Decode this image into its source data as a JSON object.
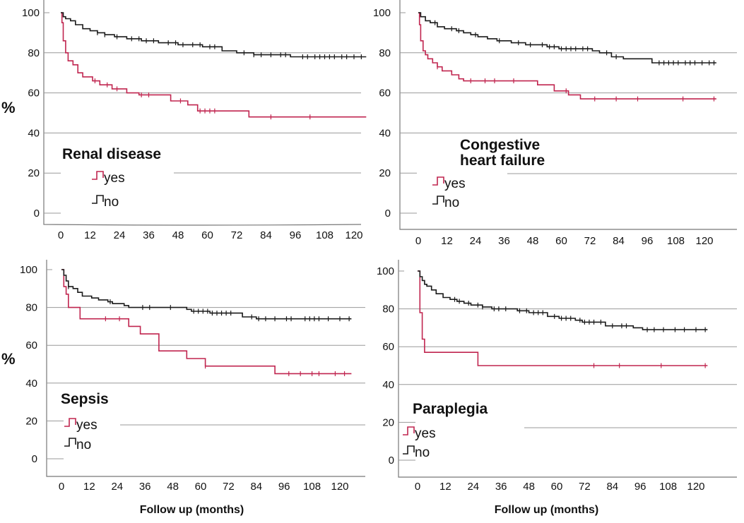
{
  "chart_data": [
    {
      "type": "line",
      "title": "Renal disease",
      "ylabel": "%",
      "xlabel": "",
      "xlim": [
        -5,
        125
      ],
      "ylim": [
        -5,
        103
      ],
      "x_ticks": [
        "0",
        "12",
        "24",
        "36",
        "48",
        "60",
        "72",
        "84",
        "96",
        "108",
        "120"
      ],
      "y_ticks": [
        "0",
        "20",
        "40",
        "60",
        "80",
        "100"
      ],
      "legend": [
        "yes",
        "no"
      ],
      "series": [
        {
          "name": "yes",
          "color": "#c0254f",
          "steps": [
            [
              0,
              100
            ],
            [
              0.5,
              95
            ],
            [
              1,
              86
            ],
            [
              2,
              80
            ],
            [
              3,
              76
            ],
            [
              5,
              74
            ],
            [
              7,
              70
            ],
            [
              9,
              68
            ],
            [
              13,
              66
            ],
            [
              16,
              64
            ],
            [
              21,
              62
            ],
            [
              27,
              60
            ],
            [
              32,
              59
            ],
            [
              45,
              56
            ],
            [
              52,
              54
            ],
            [
              56,
              51
            ],
            [
              64,
              51
            ],
            [
              77,
              48
            ],
            [
              125,
              48
            ]
          ],
          "censors": [
            14,
            19,
            23,
            33,
            36,
            49,
            57,
            59,
            61,
            63,
            86,
            102
          ]
        },
        {
          "name": "no",
          "color": "#1a1a1a",
          "steps": [
            [
              0,
              100
            ],
            [
              1,
              98
            ],
            [
              2,
              97
            ],
            [
              4,
              96
            ],
            [
              6,
              94
            ],
            [
              9,
              92
            ],
            [
              12,
              91
            ],
            [
              15,
              90
            ],
            [
              18,
              89
            ],
            [
              22,
              88
            ],
            [
              27,
              87
            ],
            [
              33,
              86
            ],
            [
              40,
              85
            ],
            [
              48,
              84
            ],
            [
              58,
              83
            ],
            [
              66,
              81
            ],
            [
              72,
              80
            ],
            [
              79,
              79
            ],
            [
              94,
              78
            ],
            [
              125,
              78
            ]
          ],
          "censors": [
            15,
            18,
            23,
            29,
            32,
            35,
            38,
            44,
            47,
            50,
            54,
            57,
            61,
            63,
            75,
            79,
            82,
            86,
            90,
            92,
            99,
            101,
            104,
            106,
            108,
            110,
            112,
            115,
            117,
            120,
            123
          ]
        }
      ]
    },
    {
      "type": "line",
      "title": "Congestive heart failure",
      "ylabel": "",
      "xlabel": "",
      "xlim": [
        -5,
        125
      ],
      "ylim": [
        -5,
        103
      ],
      "x_ticks": [
        "0",
        "12",
        "24",
        "36",
        "48",
        "60",
        "72",
        "84",
        "96",
        "108",
        "120"
      ],
      "y_ticks": [
        "0",
        "20",
        "40",
        "60",
        "80",
        "100"
      ],
      "legend": [
        "yes",
        "no"
      ],
      "series": [
        {
          "name": "yes",
          "color": "#c0254f",
          "steps": [
            [
              0,
              100
            ],
            [
              0.5,
              94
            ],
            [
              1,
              86
            ],
            [
              2,
              81
            ],
            [
              3,
              79
            ],
            [
              4,
              77
            ],
            [
              6,
              75
            ],
            [
              8,
              73
            ],
            [
              10,
              71
            ],
            [
              14,
              69
            ],
            [
              17,
              67
            ],
            [
              19,
              66
            ],
            [
              50,
              64
            ],
            [
              57,
              61
            ],
            [
              63,
              59
            ],
            [
              68,
              57
            ],
            [
              125,
              57
            ]
          ],
          "censors": [
            8,
            22,
            28,
            32,
            40,
            62,
            74,
            83,
            92,
            111,
            124
          ]
        },
        {
          "name": "no",
          "color": "#1a1a1a",
          "steps": [
            [
              0,
              100
            ],
            [
              1,
              98
            ],
            [
              3,
              96
            ],
            [
              5,
              95
            ],
            [
              8,
              93
            ],
            [
              11,
              92
            ],
            [
              16,
              91
            ],
            [
              19,
              90
            ],
            [
              22,
              89
            ],
            [
              25,
              88
            ],
            [
              29,
              87
            ],
            [
              33,
              86
            ],
            [
              39,
              85
            ],
            [
              45,
              84
            ],
            [
              54,
              83
            ],
            [
              59,
              82
            ],
            [
              73,
              81
            ],
            [
              76,
              80
            ],
            [
              81,
              78
            ],
            [
              86,
              77
            ],
            [
              98,
              75
            ],
            [
              125,
              75
            ]
          ],
          "censors": [
            7,
            14,
            17,
            24,
            34,
            42,
            47,
            52,
            55,
            57,
            60,
            62,
            64,
            66,
            69,
            71,
            79,
            83,
            101,
            103,
            105,
            107,
            109,
            112,
            114,
            116,
            119,
            122,
            124
          ]
        }
      ]
    },
    {
      "type": "line",
      "title": "Sepsis",
      "ylabel": "%",
      "xlabel": "Follow up (months)",
      "xlim": [
        -5,
        125
      ],
      "ylim": [
        -5,
        103
      ],
      "x_ticks": [
        "0",
        "12",
        "24",
        "36",
        "48",
        "60",
        "72",
        "84",
        "96",
        "108",
        "120"
      ],
      "y_ticks": [
        "0",
        "20",
        "40",
        "60",
        "80",
        "100"
      ],
      "legend": [
        "yes",
        "no"
      ],
      "series": [
        {
          "name": "yes",
          "color": "#c0254f",
          "steps": [
            [
              0,
              100
            ],
            [
              1,
              91
            ],
            [
              2,
              87
            ],
            [
              3,
              80
            ],
            [
              8,
              74
            ],
            [
              29,
              70
            ],
            [
              34,
              66
            ],
            [
              42,
              57
            ],
            [
              54,
              53
            ],
            [
              62,
              49
            ],
            [
              92,
              45
            ],
            [
              125,
              45
            ]
          ],
          "censors": [
            19,
            25,
            62,
            98,
            103,
            108,
            111,
            118,
            122
          ]
        },
        {
          "name": "no",
          "color": "#1a1a1a",
          "steps": [
            [
              0,
              100
            ],
            [
              1,
              97
            ],
            [
              2,
              94
            ],
            [
              3,
              91
            ],
            [
              5,
              90
            ],
            [
              7,
              88
            ],
            [
              9,
              86
            ],
            [
              13,
              85
            ],
            [
              16,
              84
            ],
            [
              20,
              83
            ],
            [
              22,
              82
            ],
            [
              27,
              81
            ],
            [
              29,
              80
            ],
            [
              45,
              80
            ],
            [
              54,
              79
            ],
            [
              56,
              78
            ],
            [
              64,
              77
            ],
            [
              78,
              75
            ],
            [
              84,
              74
            ],
            [
              125,
              74
            ]
          ],
          "censors": [
            3,
            21,
            35,
            38,
            47,
            57,
            59,
            61,
            63,
            65,
            67,
            69,
            71,
            73,
            82,
            85,
            88,
            92,
            97,
            99,
            105,
            107,
            109,
            111,
            115,
            120,
            124
          ]
        }
      ]
    },
    {
      "type": "line",
      "title": "Paraplegia",
      "ylabel": "",
      "xlabel": "Follow up (months)",
      "xlim": [
        -5,
        125
      ],
      "ylim": [
        -5,
        103
      ],
      "x_ticks": [
        "0",
        "12",
        "24",
        "36",
        "48",
        "60",
        "72",
        "84",
        "96",
        "108",
        "120"
      ],
      "y_ticks": [
        "0",
        "20",
        "40",
        "60",
        "80",
        "100"
      ],
      "legend": [
        "yes",
        "no"
      ],
      "series": [
        {
          "name": "yes",
          "color": "#c0254f",
          "steps": [
            [
              0,
              100
            ],
            [
              1,
              78
            ],
            [
              2,
              64
            ],
            [
              3,
              57
            ],
            [
              26,
              50
            ],
            [
              125,
              50
            ]
          ],
          "censors": [
            76,
            87,
            105,
            124
          ]
        },
        {
          "name": "no",
          "color": "#1a1a1a",
          "steps": [
            [
              0,
              100
            ],
            [
              1,
              97
            ],
            [
              2,
              95
            ],
            [
              3,
              93
            ],
            [
              4,
              92
            ],
            [
              6,
              90
            ],
            [
              8,
              88
            ],
            [
              11,
              86
            ],
            [
              14,
              85
            ],
            [
              17,
              84
            ],
            [
              20,
              83
            ],
            [
              23,
              82
            ],
            [
              28,
              81
            ],
            [
              32,
              80
            ],
            [
              43,
              79
            ],
            [
              48,
              78
            ],
            [
              56,
              76
            ],
            [
              61,
              75
            ],
            [
              68,
              74
            ],
            [
              71,
              73
            ],
            [
              81,
              71
            ],
            [
              86,
              71
            ],
            [
              93,
              70
            ],
            [
              97,
              69
            ],
            [
              125,
              69
            ]
          ],
          "censors": [
            16,
            18,
            22,
            26,
            28,
            33,
            35,
            38,
            44,
            47,
            50,
            52,
            54,
            59,
            62,
            64,
            66,
            70,
            72,
            74,
            76,
            79,
            84,
            88,
            90,
            99,
            102,
            106,
            111,
            115,
            120,
            124
          ]
        }
      ]
    }
  ]
}
